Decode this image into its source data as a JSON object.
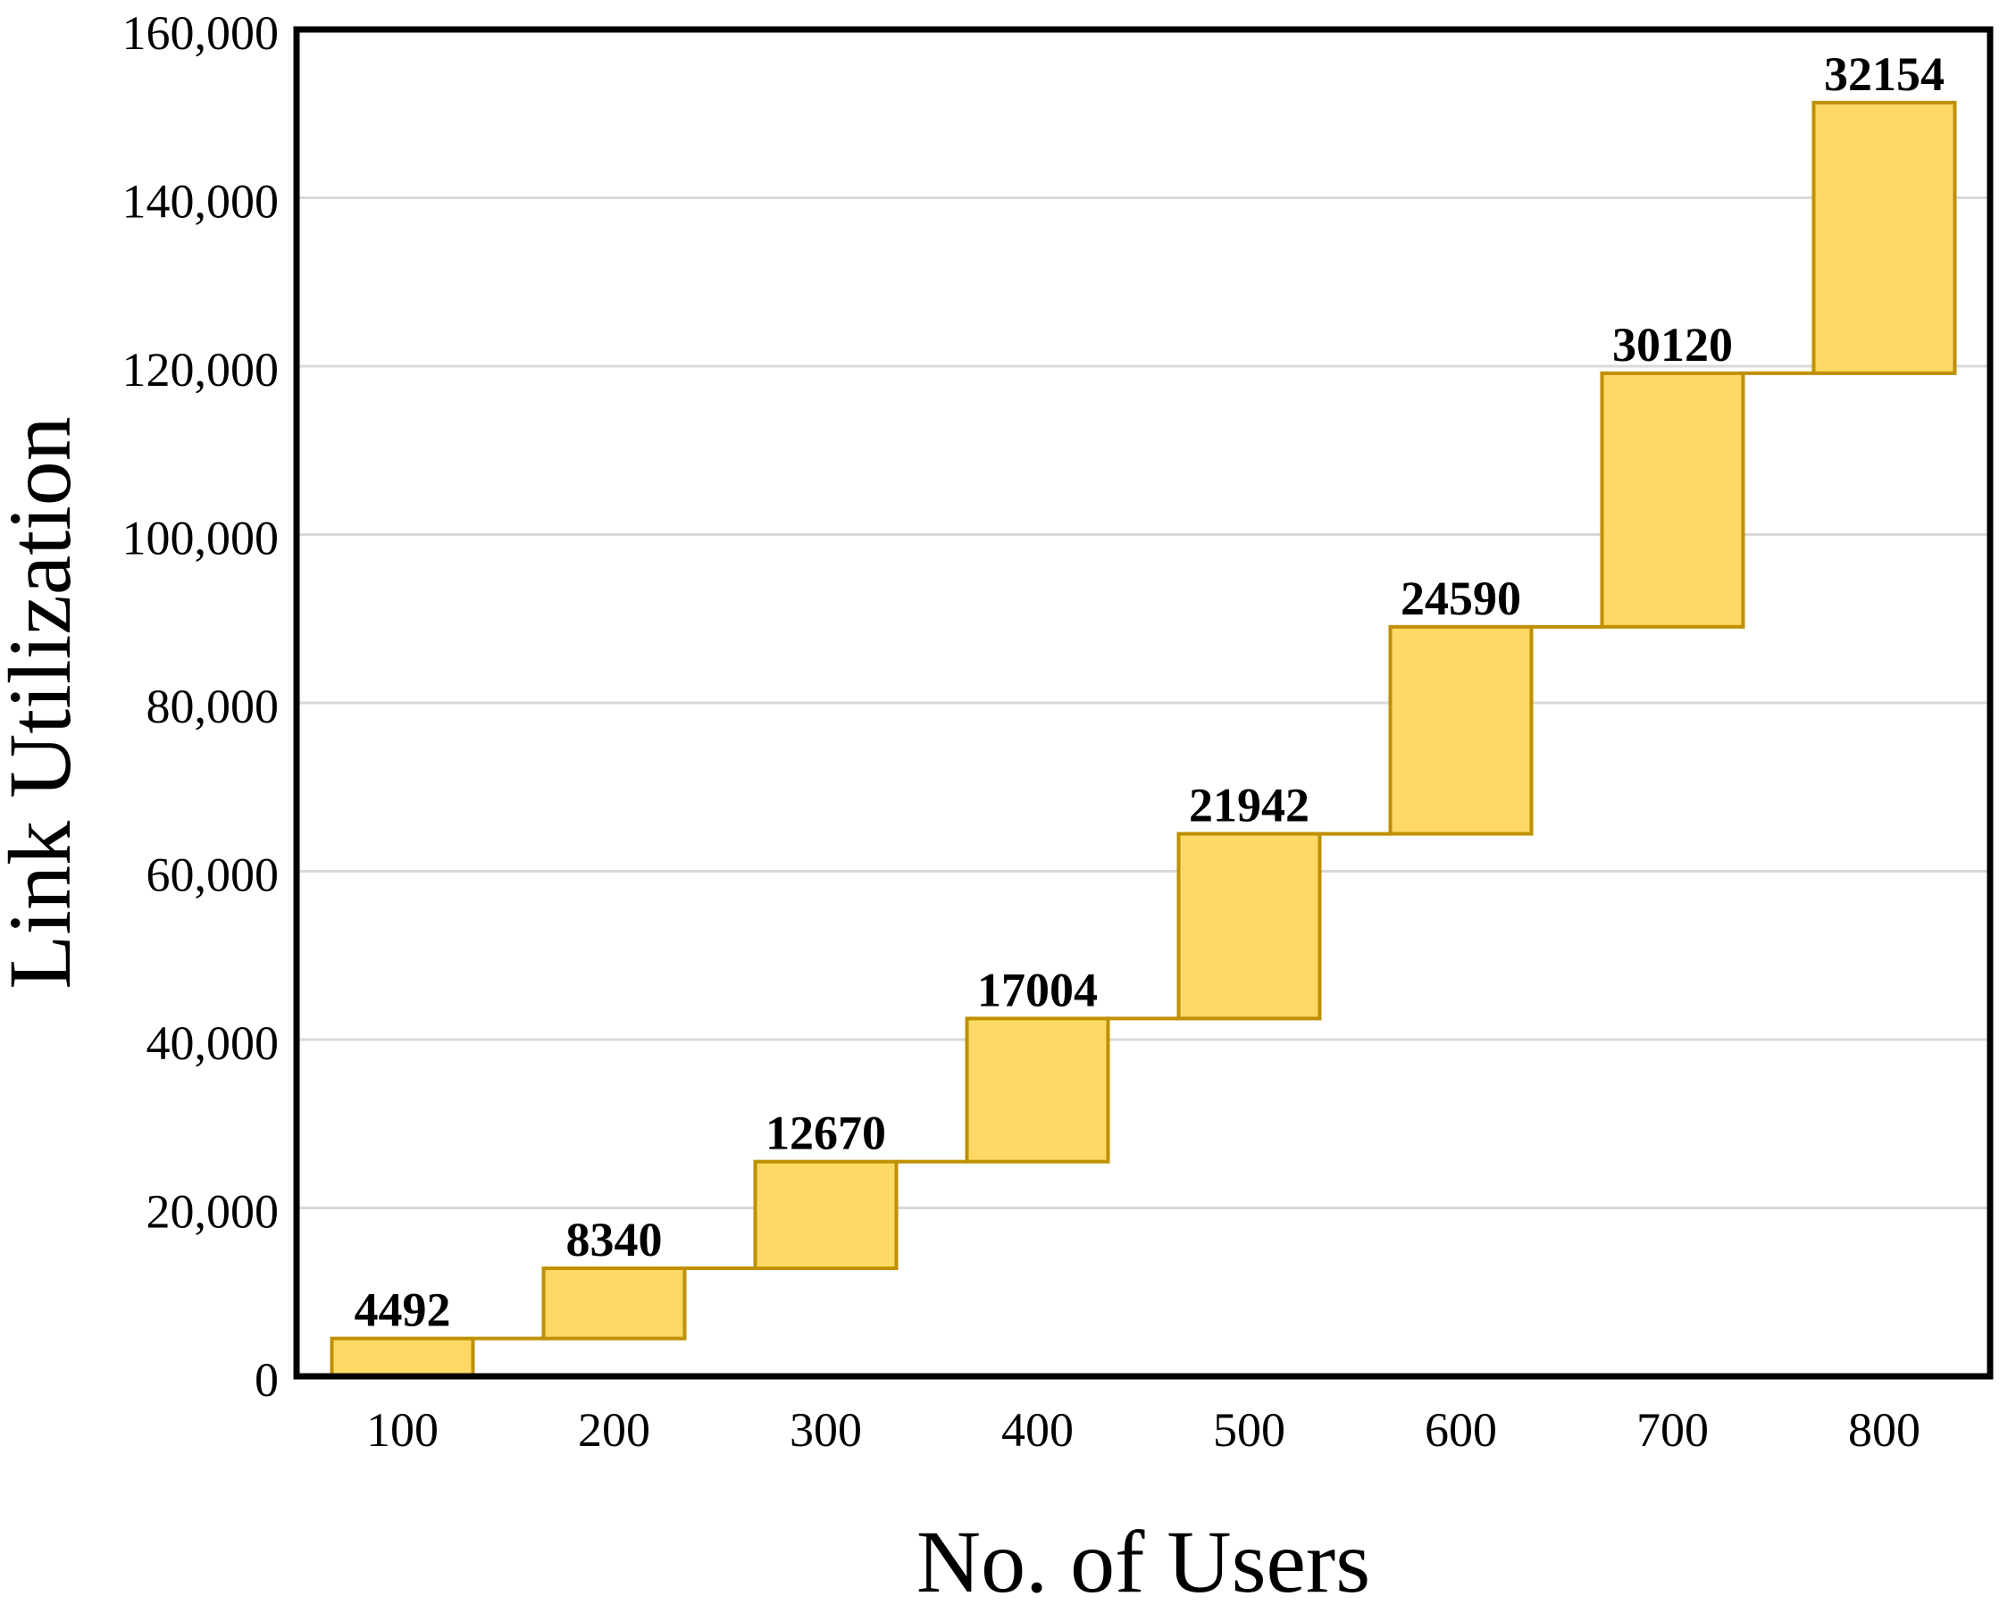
{
  "figure": {
    "background": "#FFFFFF"
  },
  "chart_data": {
    "type": "bar",
    "subtype": "waterfall",
    "title": "",
    "xlabel": "No. of Users",
    "ylabel": "Link Utilization",
    "categories": [
      "100",
      "200",
      "300",
      "400",
      "500",
      "600",
      "700",
      "800"
    ],
    "values": [
      4492,
      8340,
      12670,
      17004,
      21942,
      24590,
      30120,
      32154
    ],
    "cumulative_totals": [
      4492,
      12832,
      25502,
      42506,
      64448,
      89038,
      119158,
      151312
    ],
    "bar_labels": [
      "4492",
      "8340",
      "12670",
      "17004",
      "21942",
      "24590",
      "30120",
      "32154"
    ],
    "ylim": [
      0,
      160000
    ],
    "ytick_interval": 20000,
    "ytick_values": [
      0,
      20000,
      40000,
      60000,
      80000,
      100000,
      120000,
      140000,
      160000
    ],
    "ytick_labels": [
      "0",
      "20,000",
      "40,000",
      "60,000",
      "80,000",
      "100,000",
      "120,000",
      "140,000",
      "160,000"
    ],
    "grid": "horizontal",
    "legend": "none",
    "colors": {
      "bar_fill": "#FFD966",
      "bar_border": "#BF9000",
      "connector": "#BF9000",
      "gridline": "#D9D9D9",
      "frame": "#000000",
      "text": "#000000"
    }
  }
}
